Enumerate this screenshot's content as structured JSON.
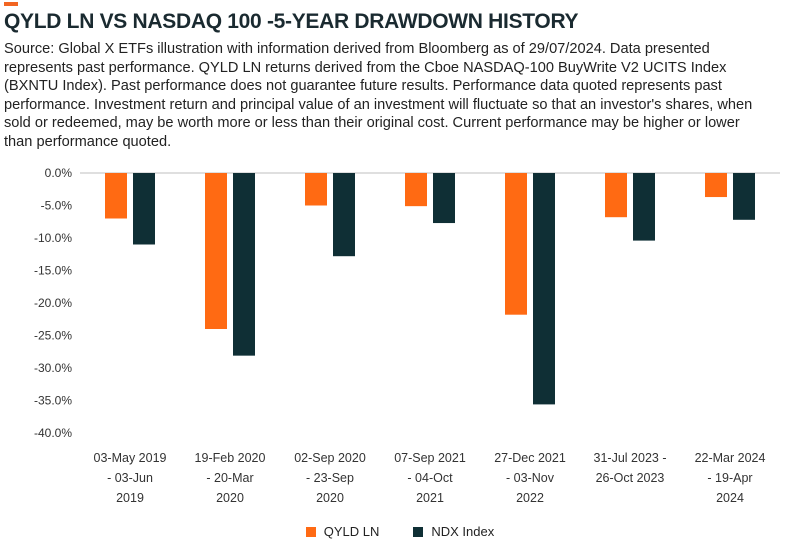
{
  "header": {
    "title": "QYLD LN VS NASDAQ 100 -5-YEAR DRAWDOWN HISTORY",
    "source": "Source: Global X ETFs illustration with information derived from Bloomberg as of 29/07/2024. Data presented represents past performance. QYLD LN returns derived from the Cboe NASDAQ-100 BuyWrite V2 UCITS Index (BXNTU Index). Past performance does not guarantee future results. Performance data quoted represents past performance. Investment return and principal value of an investment will fluctuate so that an investor's shares, when sold or redeemed, may be worth more or less than their original cost. Current performance may be higher or lower than performance quoted."
  },
  "colors": {
    "accent": "#f26522",
    "qyld": "#ff6a13",
    "ndx": "#0f2f35"
  },
  "chart_data": {
    "type": "bar",
    "categories": [
      [
        "03-May 2019",
        "- 03-Jun",
        "2019"
      ],
      [
        "19-Feb 2020",
        "- 20-Mar",
        "2020"
      ],
      [
        "02-Sep 2020",
        "- 23-Sep",
        "2020"
      ],
      [
        "07-Sep 2021",
        "- 04-Oct",
        "2021"
      ],
      [
        "27-Dec 2021",
        "- 03-Nov",
        "2022"
      ],
      [
        "31-Jul 2023 -",
        "26-Oct 2023",
        ""
      ],
      [
        "22-Mar 2024",
        "- 19-Apr",
        "2024"
      ]
    ],
    "series": [
      {
        "name": "QYLD LN",
        "color": "#ff6a13",
        "values": [
          -7.0,
          -24.0,
          -5.0,
          -5.1,
          -21.8,
          -6.8,
          -3.7
        ]
      },
      {
        "name": "NDX Index",
        "color": "#0f2f35",
        "values": [
          -11.0,
          -28.1,
          -12.8,
          -7.7,
          -35.6,
          -10.4,
          -7.2
        ]
      }
    ],
    "ylim": [
      -40,
      0
    ],
    "yticks": [
      0,
      -5,
      -10,
      -15,
      -20,
      -25,
      -30,
      -35,
      -40
    ],
    "ytick_labels": [
      "0.0%",
      "-5.0%",
      "-10.0%",
      "-15.0%",
      "-20.0%",
      "-25.0%",
      "-30.0%",
      "-35.0%",
      "-40.0%"
    ],
    "grid": false,
    "legend_position": "bottom-center"
  }
}
